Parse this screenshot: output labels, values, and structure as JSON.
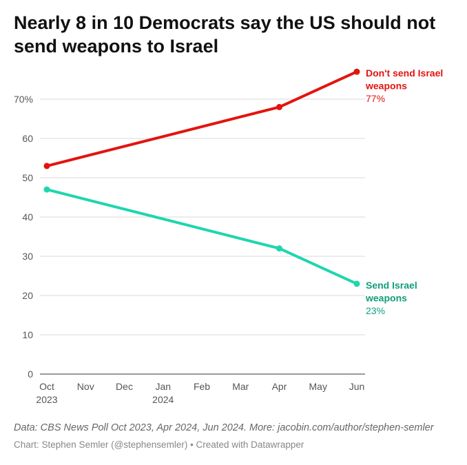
{
  "title": "Nearly 8 in 10 Democrats say the US should not send weapons to Israel",
  "source_note": "Data: CBS News Poll Oct 2023, Apr 2024, Jun 2024. More: jacobin.com/author/stephen-semler",
  "credit": "Chart: Stephen Semler (@stephensemler) • Created with Datawrapper",
  "chart_data": {
    "type": "line",
    "x_ticks": [
      {
        "label": "Oct",
        "sub": "2023"
      },
      {
        "label": "Nov",
        "sub": ""
      },
      {
        "label": "Dec",
        "sub": ""
      },
      {
        "label": "Jan",
        "sub": "2024"
      },
      {
        "label": "Feb",
        "sub": ""
      },
      {
        "label": "Mar",
        "sub": ""
      },
      {
        "label": "Apr",
        "sub": ""
      },
      {
        "label": "May",
        "sub": ""
      },
      {
        "label": "Jun",
        "sub": ""
      }
    ],
    "y_ticks": [
      "0",
      "10",
      "20",
      "30",
      "40",
      "50",
      "60",
      "70%"
    ],
    "ylim": [
      0,
      70
    ],
    "grid": true,
    "series": [
      {
        "name": "Don't send Israel weapons",
        "name_lines": [
          "Don't send Israel",
          "weapons"
        ],
        "value_label": "77%",
        "color": "#e3140e",
        "points": [
          {
            "x": "Oct 2023",
            "y": 53
          },
          {
            "x": "Apr 2024",
            "y": 68
          },
          {
            "x": "Jun 2024",
            "y": 77
          }
        ]
      },
      {
        "name": "Send Israel weapons",
        "name_lines": [
          "Send Israel",
          "weapons"
        ],
        "value_label": "23%",
        "color": "#1ed6ae",
        "label_color": "#0f9e7a",
        "points": [
          {
            "x": "Oct 2023",
            "y": 47
          },
          {
            "x": "Apr 2024",
            "y": 32
          },
          {
            "x": "Jun 2024",
            "y": 23
          }
        ]
      }
    ]
  }
}
